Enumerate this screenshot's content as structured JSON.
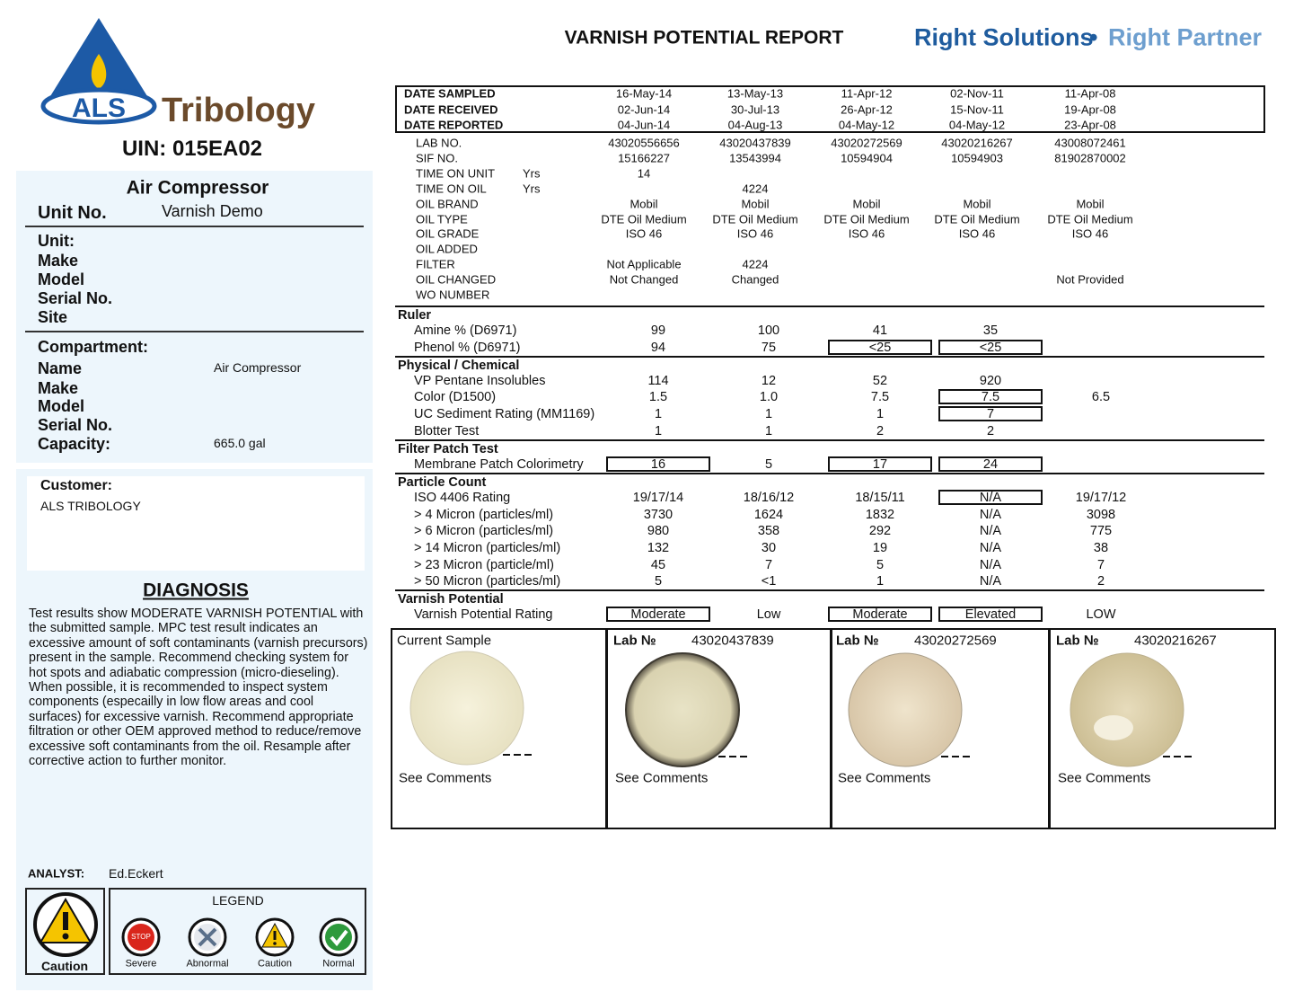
{
  "logo": {
    "als": "ALS",
    "name": "Tribology"
  },
  "header": {
    "title": "VARNISH POTENTIAL REPORT",
    "tagline_left": "Right Solutions",
    "tagline_sep": "•",
    "tagline_right": "Right Partner"
  },
  "uin": "UIN: 015EA02",
  "unit": {
    "heading": "Air Compressor",
    "number_label": "Unit No.",
    "number": "Varnish Demo",
    "fields": [
      "Unit:",
      "Make",
      "Model",
      "Serial No.",
      "Site"
    ]
  },
  "compartment": {
    "heading": "Compartment:",
    "fields": [
      {
        "label": "Name",
        "value": "Air Compressor"
      },
      {
        "label": "Make",
        "value": null
      },
      {
        "label": "Model",
        "value": null
      },
      {
        "label": "Serial No.",
        "value": null
      },
      {
        "label": "Capacity:",
        "value": "665.0 gal"
      }
    ]
  },
  "customer": {
    "label": "Customer:",
    "name": "ALS TRIBOLOGY"
  },
  "diagnosis": {
    "title": "DIAGNOSIS",
    "text": "Test results show MODERATE VARNISH POTENTIAL with the submitted sample. MPC test result indicates an excessive amount of soft contaminants (varnish precursors) present in the sample. Recommend checking system for hot spots and adiabatic compression (micro-dieseling). When possible, it is recommended to inspect system components (especailly in low flow areas and cool surfaces) for excessive varnish. Recommend appropriate filtration or other OEM approved method to reduce/remove excessive soft contaminants from the oil. Resample after corrective action to further monitor."
  },
  "analyst": {
    "label": "ANALYST:",
    "name": "Ed.Eckert"
  },
  "status": {
    "label": "Caution"
  },
  "legend": {
    "title": "LEGEND",
    "stop_text": "STOP",
    "items": [
      "Severe",
      "Abnormal",
      "Caution",
      "Normal"
    ]
  },
  "dates": [
    {
      "label": "DATE SAMPLED",
      "values": [
        "16-May-14",
        "13-May-13",
        "11-Apr-12",
        "02-Nov-11",
        "11-Apr-08"
      ]
    },
    {
      "label": "DATE RECEIVED",
      "values": [
        "02-Jun-14",
        "30-Jul-13",
        "26-Apr-12",
        "15-Nov-11",
        "19-Apr-08"
      ]
    },
    {
      "label": "DATE REPORTED",
      "values": [
        "04-Jun-14",
        "04-Aug-13",
        "04-May-12",
        "04-May-12",
        "23-Apr-08"
      ]
    }
  ],
  "info": [
    {
      "label": "LAB NO.",
      "unit": null,
      "values": [
        "43020556656",
        "43020437839",
        "43020272569",
        "43020216267",
        "43008072461"
      ]
    },
    {
      "label": "SIF NO.",
      "unit": null,
      "values": [
        "15166227",
        "13543994",
        "10594904",
        "10594903",
        "81902870002"
      ]
    },
    {
      "label": "TIME ON UNIT",
      "unit": "Yrs",
      "values": [
        "14",
        null,
        null,
        null,
        null
      ]
    },
    {
      "label": "TIME ON OIL",
      "unit": "Yrs",
      "values": [
        null,
        "4224",
        null,
        null,
        null
      ]
    },
    {
      "label": "OIL BRAND",
      "unit": null,
      "values": [
        "Mobil",
        "Mobil",
        "Mobil",
        "Mobil",
        "Mobil"
      ]
    },
    {
      "label": "OIL TYPE",
      "unit": null,
      "values": [
        "DTE Oil Medium",
        "DTE Oil Medium",
        "DTE Oil Medium",
        "DTE Oil Medium",
        "DTE Oil Medium"
      ]
    },
    {
      "label": "OIL GRADE",
      "unit": null,
      "values": [
        "ISO 46",
        "ISO 46",
        "ISO 46",
        "ISO 46",
        "ISO 46"
      ]
    },
    {
      "label": "OIL ADDED",
      "unit": null,
      "values": [
        null,
        null,
        null,
        null,
        null
      ]
    },
    {
      "label": "FILTER",
      "unit": null,
      "values": [
        "Not Applicable",
        "4224",
        null,
        null,
        null
      ]
    },
    {
      "label": "OIL CHANGED",
      "unit": null,
      "values": [
        "Not Changed",
        "Changed",
        null,
        null,
        "Not Provided"
      ]
    },
    {
      "label": "WO NUMBER",
      "unit": null,
      "values": [
        null,
        null,
        null,
        null,
        null
      ]
    }
  ],
  "sections": [
    {
      "name": "Ruler",
      "rows": [
        {
          "label": "Amine % (D6971)",
          "values": [
            "99",
            "100",
            "41",
            "35",
            null
          ],
          "boxed": []
        },
        {
          "label": "Phenol % (D6971)",
          "values": [
            "94",
            "75",
            "<25",
            "<25",
            null
          ],
          "boxed": [
            2,
            3
          ]
        }
      ]
    },
    {
      "name": "Physical / Chemical",
      "rows": [
        {
          "label": "VP Pentane Insolubles",
          "values": [
            "114",
            "12",
            "52",
            "920",
            null
          ],
          "boxed": []
        },
        {
          "label": "Color (D1500)",
          "values": [
            "1.5",
            "1.0",
            "7.5",
            "7.5",
            "6.5"
          ],
          "boxed": [
            3
          ]
        },
        {
          "label": "UC Sediment Rating (MM1169)",
          "values": [
            "1",
            "1",
            "1",
            "7",
            null
          ],
          "boxed": [
            3
          ]
        },
        {
          "label": "Blotter Test",
          "values": [
            "1",
            "1",
            "2",
            "2",
            null
          ],
          "boxed": []
        }
      ]
    },
    {
      "name": "Filter Patch Test",
      "rows": [
        {
          "label": "Membrane Patch Colorimetry",
          "values": [
            "16",
            "5",
            "17",
            "24",
            null
          ],
          "boxed": [
            0,
            2,
            3
          ]
        }
      ]
    },
    {
      "name": "Particle Count",
      "rows": [
        {
          "label": "ISO 4406 Rating",
          "values": [
            "19/17/14",
            "18/16/12",
            "18/15/11",
            "N/A",
            "19/17/12"
          ],
          "boxed": [
            3
          ]
        },
        {
          "label": "> 4 Micron (particles/ml)",
          "values": [
            "3730",
            "1624",
            "1832",
            "N/A",
            "3098"
          ],
          "boxed": []
        },
        {
          "label": "> 6 Micron (particles/ml)",
          "values": [
            "980",
            "358",
            "292",
            "N/A",
            "775"
          ],
          "boxed": []
        },
        {
          "label": "> 14 Micron (particles/ml)",
          "values": [
            "132",
            "30",
            "19",
            "N/A",
            "38"
          ],
          "boxed": []
        },
        {
          "label": "> 23 Micron (particle/ml)",
          "values": [
            "45",
            "7",
            "5",
            "N/A",
            "7"
          ],
          "boxed": []
        },
        {
          "label": "> 50 Micron (particles/ml)",
          "values": [
            "5",
            "<1",
            "1",
            "N/A",
            "2"
          ],
          "boxed": []
        }
      ]
    },
    {
      "name": "Varnish Potential",
      "rows": [
        {
          "label": "Varnish Potential Rating",
          "values": [
            "Moderate",
            "Low",
            "Moderate",
            "Elevated",
            "LOW"
          ],
          "boxed": [
            0,
            2,
            3
          ]
        }
      ]
    }
  ],
  "samples": [
    {
      "label": "Current Sample",
      "lab_no": null,
      "note": "See Comments"
    },
    {
      "label": "Lab №",
      "lab_no": "43020437839",
      "note": "See Comments"
    },
    {
      "label": "Lab №",
      "lab_no": "43020272569",
      "note": "See Comments"
    },
    {
      "label": "Lab №",
      "lab_no": "43020216267",
      "note": "See Comments"
    }
  ]
}
